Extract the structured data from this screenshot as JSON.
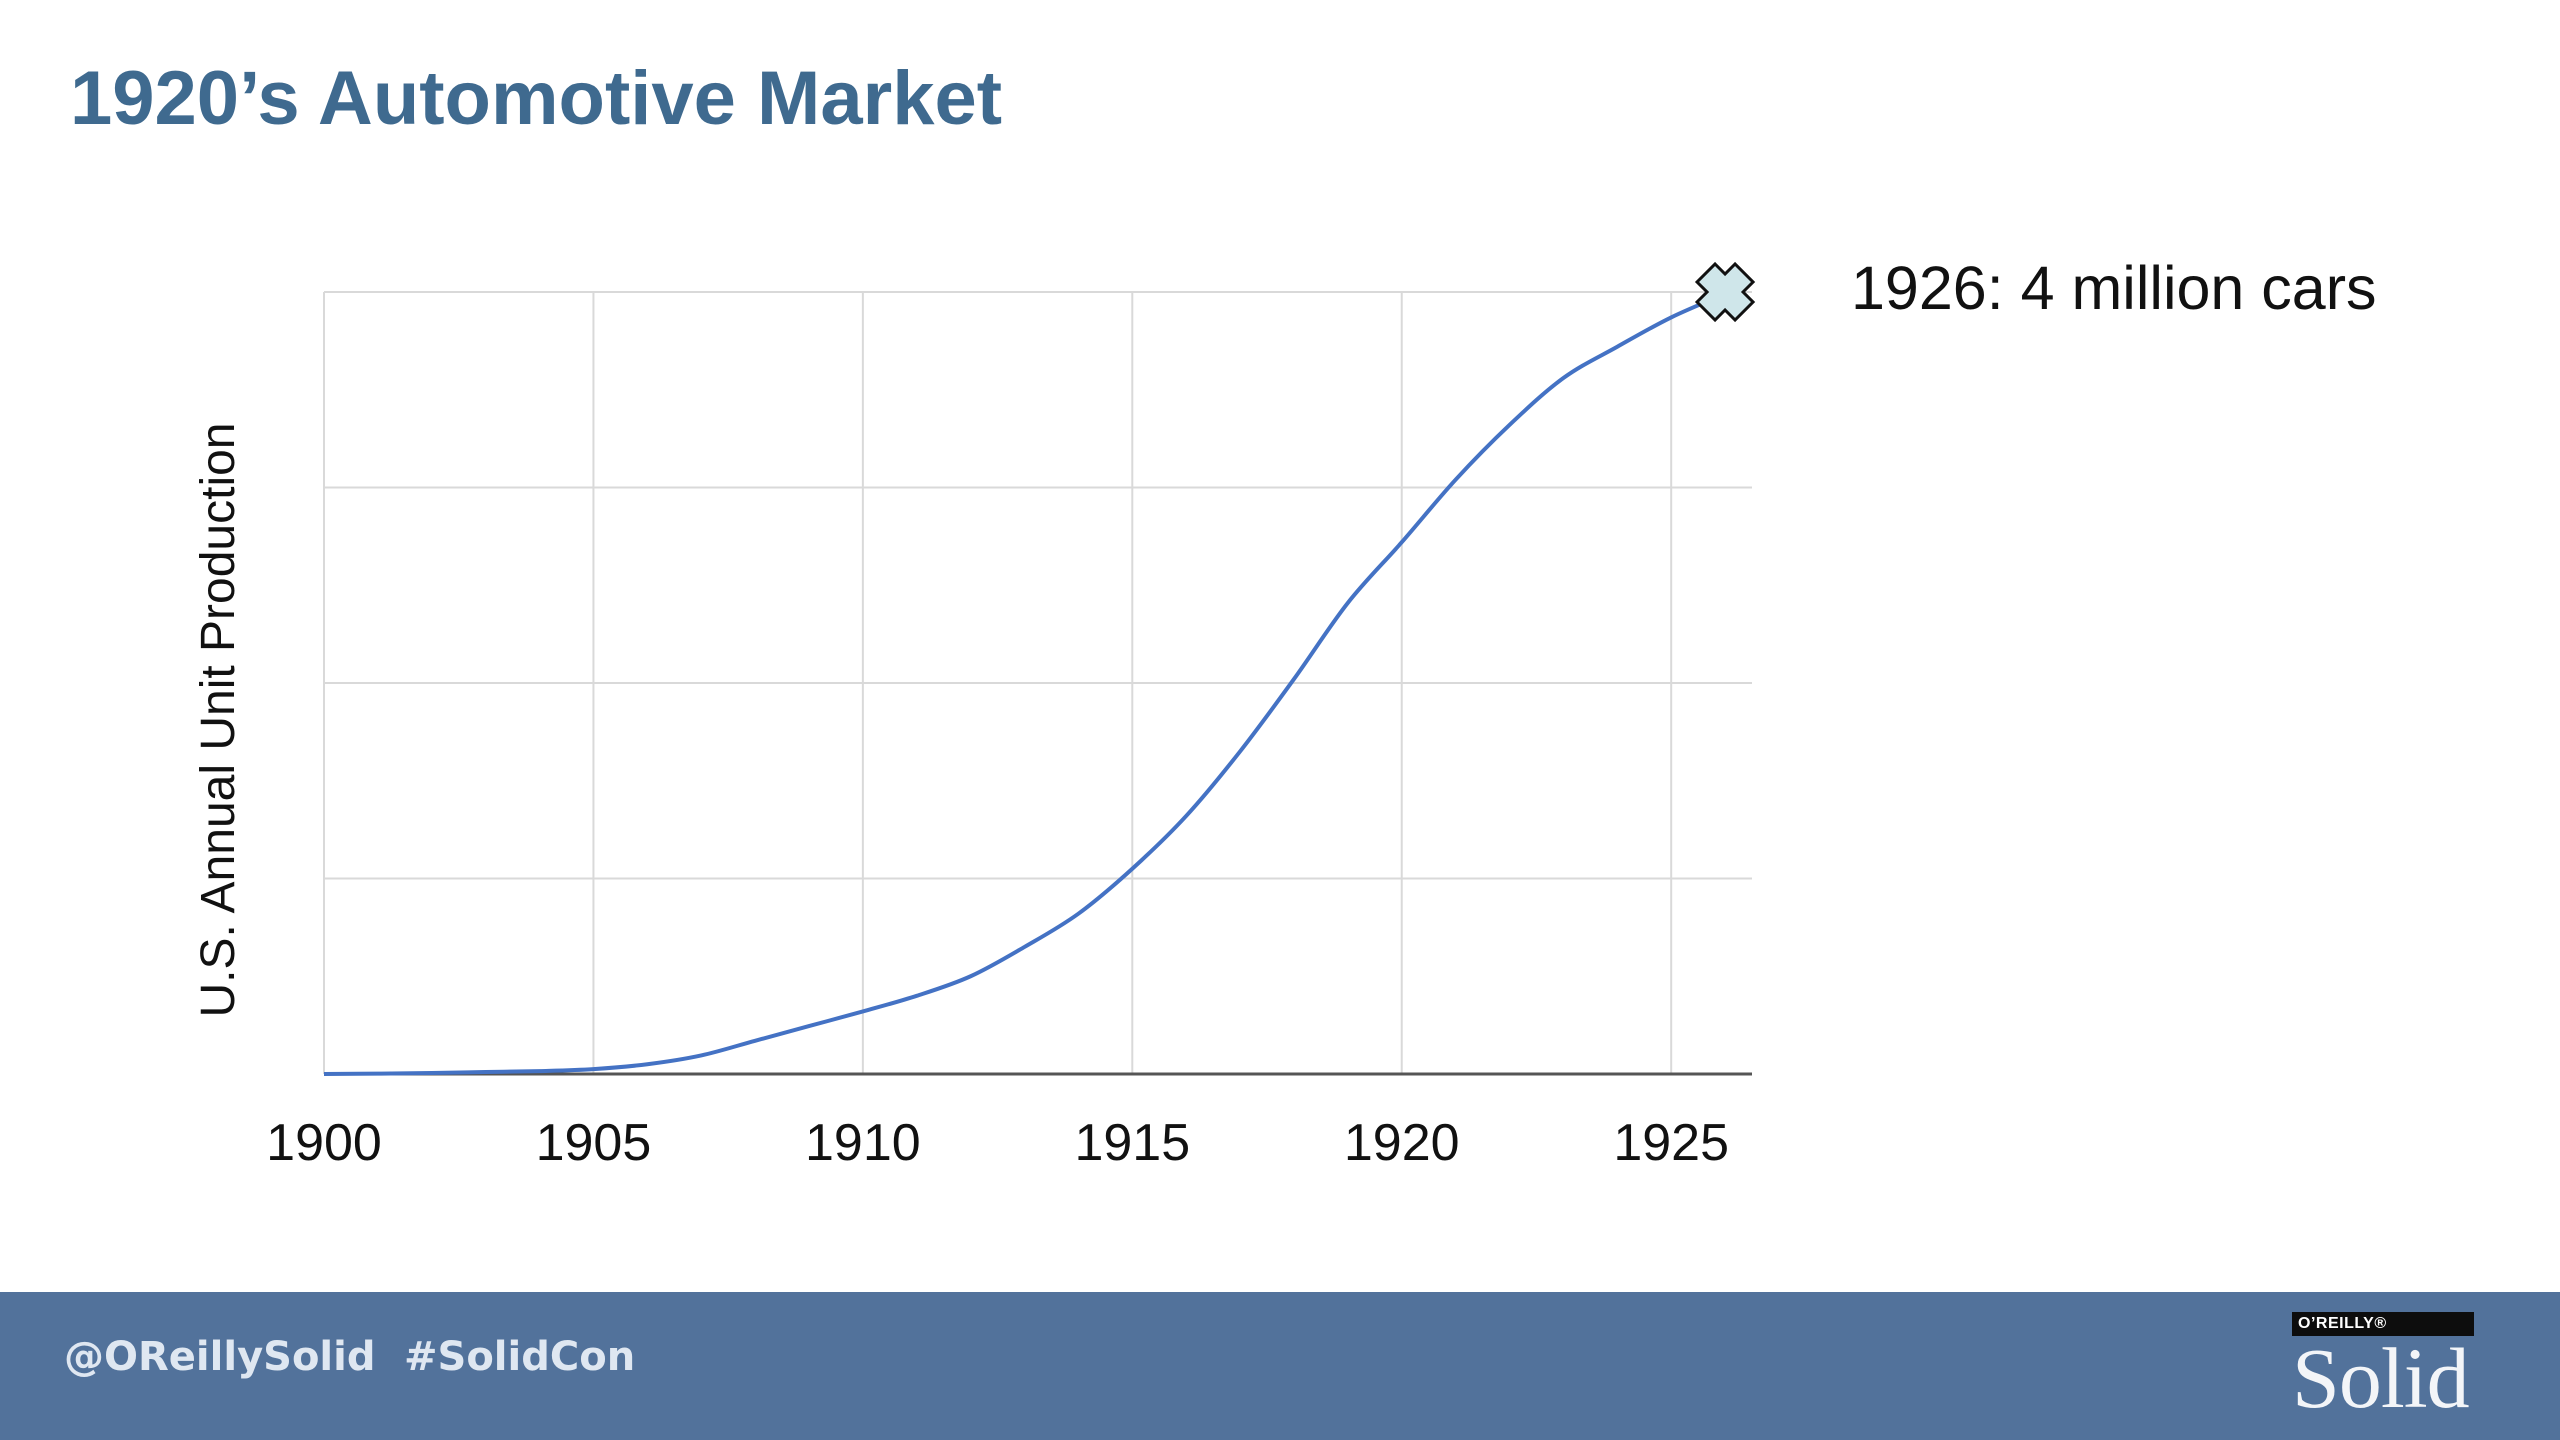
{
  "slide": {
    "title": "1920’s Automotive Market"
  },
  "chart_data": {
    "type": "line",
    "title": "",
    "xlabel": "",
    "ylabel": "U.S. Annual Unit Production",
    "x_tick_labels": [
      "1900",
      "1905",
      "1910",
      "1915",
      "1920",
      "1925"
    ],
    "xlim": [
      1900,
      1926.5
    ],
    "ylim": [
      0,
      4000000
    ],
    "y_tick_labels_shown": false,
    "grid": true,
    "legend": "none",
    "line_color": "#4472c4",
    "series": [
      {
        "x": [
          1900,
          1901,
          1902,
          1903,
          1904,
          1905,
          1906,
          1907,
          1908,
          1909,
          1910,
          1911,
          1912,
          1913,
          1914,
          1915,
          1916,
          1917,
          1918,
          1919,
          1920,
          1921,
          1922,
          1923,
          1924,
          1925,
          1926
        ],
        "y": [
          0,
          2000,
          5000,
          10000,
          15000,
          25000,
          50000,
          95000,
          170000,
          245000,
          320000,
          400000,
          500000,
          650000,
          820000,
          1050000,
          1320000,
          1650000,
          2020000,
          2410000,
          2720000,
          3040000,
          3320000,
          3560000,
          3720000,
          3870000,
          3990000
        ]
      }
    ],
    "marker": {
      "x": 1926,
      "y": 4000000,
      "shape": "cross",
      "color": "#cfe6ea"
    },
    "annotation": "1926: 4 million cars"
  },
  "footer": {
    "handle": "@OReillySolid",
    "hashtag": "#SolidCon",
    "background": "#52729b",
    "logo_top": "O’REILLY®",
    "logo_word": "Solid"
  },
  "colors": {
    "title": "#3f6a8f",
    "grid": "#d9d9d9",
    "axis": "#555555"
  }
}
